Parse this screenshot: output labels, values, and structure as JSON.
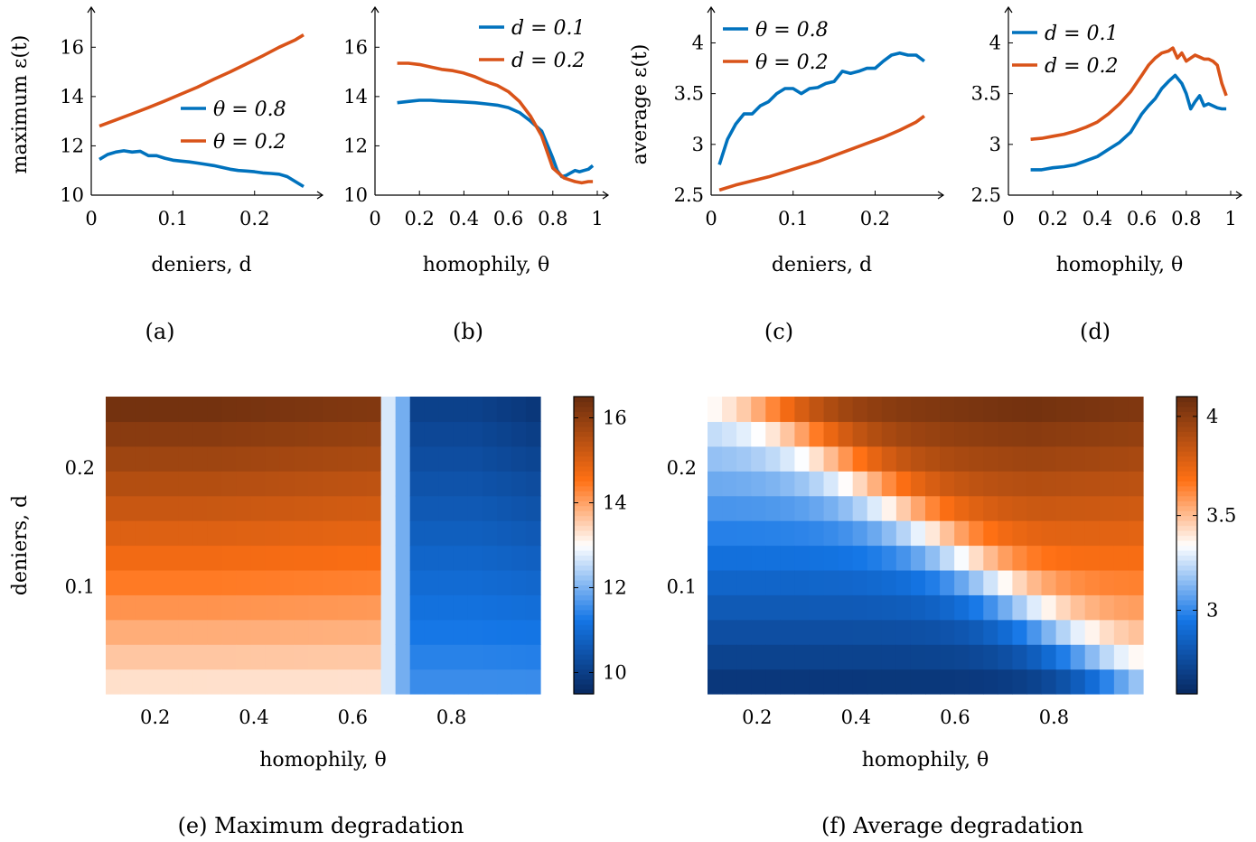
{
  "colors": {
    "blue": "#0072BD",
    "orange": "#D95319"
  },
  "panels": [
    {
      "caption": "(a)",
      "xlabel": "deniers, d",
      "ylabel": "maximum ε(t)",
      "xlim": [
        0,
        0.27
      ],
      "ylim": [
        10,
        17
      ],
      "xticks": [
        0,
        0.1,
        0.2
      ],
      "xtick_labels": [
        "0",
        "0.1",
        "0.2"
      ],
      "yticks": [
        10,
        12,
        14,
        16
      ],
      "ytick_labels": [
        "10",
        "12",
        "14",
        "16"
      ],
      "legend_position": "right",
      "series": [
        {
          "name": "θ = 0.8",
          "color": "blue",
          "x": [
            0.01,
            0.02,
            0.03,
            0.04,
            0.05,
            0.06,
            0.07,
            0.08,
            0.09,
            0.1,
            0.11,
            0.12,
            0.13,
            0.14,
            0.15,
            0.16,
            0.17,
            0.18,
            0.19,
            0.2,
            0.21,
            0.22,
            0.23,
            0.24,
            0.25,
            0.26
          ],
          "y": [
            11.45,
            11.65,
            11.75,
            11.8,
            11.75,
            11.78,
            11.6,
            11.6,
            11.5,
            11.42,
            11.38,
            11.35,
            11.3,
            11.25,
            11.2,
            11.13,
            11.05,
            11.0,
            10.98,
            10.95,
            10.9,
            10.88,
            10.85,
            10.75,
            10.55,
            10.35
          ]
        },
        {
          "name": "θ = 0.2",
          "color": "orange",
          "x": [
            0.01,
            0.03,
            0.05,
            0.07,
            0.09,
            0.11,
            0.13,
            0.15,
            0.17,
            0.19,
            0.21,
            0.23,
            0.25,
            0.26
          ],
          "y": [
            12.8,
            13.05,
            13.3,
            13.55,
            13.82,
            14.1,
            14.38,
            14.7,
            15.0,
            15.32,
            15.65,
            16.0,
            16.3,
            16.5
          ]
        }
      ]
    },
    {
      "caption": "(b)",
      "xlabel": "homophily, θ",
      "ylabel": "",
      "xlim": [
        0,
        1
      ],
      "ylim": [
        10,
        17
      ],
      "xticks": [
        0,
        0.2,
        0.4,
        0.6,
        0.8,
        1
      ],
      "xtick_labels": [
        "0",
        "0.2",
        "0.4",
        "0.6",
        "0.8",
        "1"
      ],
      "yticks": [
        10,
        12,
        14,
        16
      ],
      "ytick_labels": [
        "10",
        "12",
        "14",
        "16"
      ],
      "legend_position": "top-right",
      "series": [
        {
          "name": "d = 0.1",
          "color": "blue",
          "x": [
            0.1,
            0.15,
            0.2,
            0.25,
            0.3,
            0.35,
            0.4,
            0.45,
            0.5,
            0.55,
            0.6,
            0.65,
            0.7,
            0.75,
            0.8,
            0.82,
            0.84,
            0.86,
            0.88,
            0.9,
            0.92,
            0.94,
            0.96,
            0.98
          ],
          "y": [
            13.75,
            13.8,
            13.85,
            13.85,
            13.82,
            13.8,
            13.78,
            13.75,
            13.7,
            13.65,
            13.55,
            13.35,
            13.0,
            12.6,
            11.5,
            11.0,
            10.75,
            10.8,
            10.9,
            11.0,
            10.95,
            11.0,
            11.05,
            11.2
          ]
        },
        {
          "name": "d = 0.2",
          "color": "orange",
          "x": [
            0.1,
            0.15,
            0.2,
            0.25,
            0.3,
            0.35,
            0.4,
            0.45,
            0.5,
            0.55,
            0.6,
            0.65,
            0.7,
            0.75,
            0.8,
            0.85,
            0.9,
            0.93,
            0.96,
            0.98
          ],
          "y": [
            15.35,
            15.35,
            15.3,
            15.2,
            15.1,
            15.05,
            14.95,
            14.8,
            14.6,
            14.45,
            14.2,
            13.8,
            13.2,
            12.4,
            11.1,
            10.7,
            10.55,
            10.5,
            10.55,
            10.55
          ]
        }
      ]
    },
    {
      "caption": "(c)",
      "xlabel": "deniers, d",
      "ylabel": "average ε(t)",
      "xlim": [
        0,
        0.27
      ],
      "ylim": [
        2.5,
        4.2
      ],
      "xticks": [
        0,
        0.1,
        0.2
      ],
      "xtick_labels": [
        "0",
        "0.1",
        "0.2"
      ],
      "yticks": [
        2.5,
        3,
        3.5,
        4
      ],
      "ytick_labels": [
        "2.5",
        "3",
        "3.5",
        "4"
      ],
      "legend_position": "top-left",
      "series": [
        {
          "name": "θ = 0.8",
          "color": "blue",
          "x": [
            0.01,
            0.02,
            0.03,
            0.04,
            0.05,
            0.06,
            0.07,
            0.08,
            0.09,
            0.1,
            0.11,
            0.12,
            0.13,
            0.14,
            0.15,
            0.16,
            0.17,
            0.18,
            0.19,
            0.2,
            0.21,
            0.22,
            0.23,
            0.24,
            0.25,
            0.26
          ],
          "y": [
            2.8,
            3.05,
            3.2,
            3.3,
            3.3,
            3.38,
            3.42,
            3.5,
            3.55,
            3.55,
            3.5,
            3.55,
            3.56,
            3.6,
            3.62,
            3.72,
            3.7,
            3.72,
            3.75,
            3.75,
            3.82,
            3.88,
            3.9,
            3.88,
            3.88,
            3.82
          ]
        },
        {
          "name": "θ = 0.2",
          "color": "orange",
          "x": [
            0.01,
            0.03,
            0.05,
            0.07,
            0.09,
            0.11,
            0.13,
            0.15,
            0.17,
            0.19,
            0.21,
            0.23,
            0.25,
            0.26
          ],
          "y": [
            2.55,
            2.6,
            2.64,
            2.68,
            2.73,
            2.78,
            2.83,
            2.89,
            2.95,
            3.01,
            3.07,
            3.14,
            3.22,
            3.28
          ]
        }
      ]
    },
    {
      "caption": "(d)",
      "xlabel": "homophily, θ",
      "ylabel": "",
      "xlim": [
        0,
        1
      ],
      "ylim": [
        2.5,
        4.2
      ],
      "xticks": [
        0,
        0.2,
        0.4,
        0.6,
        0.8,
        1
      ],
      "xtick_labels": [
        "0",
        "0.2",
        "0.4",
        "0.6",
        "0.8",
        "1"
      ],
      "yticks": [
        2.5,
        3,
        3.5,
        4
      ],
      "ytick_labels": [
        "2.5",
        "3",
        "3.5",
        "4"
      ],
      "legend_position": "top-left",
      "series": [
        {
          "name": "d = 0.1",
          "color": "blue",
          "x": [
            0.1,
            0.15,
            0.2,
            0.25,
            0.3,
            0.35,
            0.4,
            0.45,
            0.5,
            0.55,
            0.6,
            0.63,
            0.66,
            0.69,
            0.72,
            0.75,
            0.78,
            0.8,
            0.82,
            0.84,
            0.86,
            0.88,
            0.9,
            0.92,
            0.94,
            0.96,
            0.98
          ],
          "y": [
            2.75,
            2.75,
            2.77,
            2.78,
            2.8,
            2.84,
            2.88,
            2.95,
            3.02,
            3.12,
            3.3,
            3.38,
            3.45,
            3.55,
            3.62,
            3.68,
            3.6,
            3.5,
            3.35,
            3.42,
            3.48,
            3.38,
            3.4,
            3.38,
            3.36,
            3.35,
            3.35
          ]
        },
        {
          "name": "d = 0.2",
          "color": "orange",
          "x": [
            0.1,
            0.15,
            0.2,
            0.25,
            0.3,
            0.35,
            0.4,
            0.45,
            0.5,
            0.55,
            0.6,
            0.63,
            0.66,
            0.69,
            0.72,
            0.74,
            0.76,
            0.78,
            0.8,
            0.82,
            0.84,
            0.86,
            0.88,
            0.9,
            0.92,
            0.94,
            0.96,
            0.98
          ],
          "y": [
            3.05,
            3.06,
            3.08,
            3.1,
            3.13,
            3.17,
            3.22,
            3.3,
            3.4,
            3.52,
            3.68,
            3.78,
            3.85,
            3.9,
            3.92,
            3.95,
            3.85,
            3.9,
            3.82,
            3.85,
            3.88,
            3.86,
            3.84,
            3.84,
            3.82,
            3.78,
            3.6,
            3.48
          ]
        }
      ]
    }
  ],
  "heatmaps": [
    {
      "caption": "(e) Maximum degradation",
      "xlabel": "homophily, θ",
      "ylabel": "deniers, d",
      "xlim": [
        0.1,
        0.98
      ],
      "ylim": [
        0.01,
        0.26
      ],
      "xticks": [
        0.2,
        0.4,
        0.6,
        0.8
      ],
      "xtick_labels": [
        "0.2",
        "0.4",
        "0.6",
        "0.8"
      ],
      "yticks": [
        0.1,
        0.2
      ],
      "ytick_labels": [
        "0.1",
        "0.2"
      ],
      "colorbar": {
        "min": 9.5,
        "max": 16.5,
        "center": 13.0,
        "ticks": [
          10,
          12,
          14,
          16
        ],
        "tick_labels": [
          "10",
          "12",
          "14",
          "16"
        ]
      }
    },
    {
      "caption": "(f) Average degradation",
      "xlabel": "homophily, θ",
      "ylabel": "",
      "xlim": [
        0.1,
        0.98
      ],
      "ylim": [
        0.01,
        0.26
      ],
      "xticks": [
        0.2,
        0.4,
        0.6,
        0.8
      ],
      "xtick_labels": [
        "0.2",
        "0.4",
        "0.6",
        "0.8"
      ],
      "yticks": [
        0.1,
        0.2
      ],
      "ytick_labels": [
        "0.1",
        "0.2"
      ],
      "colorbar": {
        "min": 2.55,
        "max": 4.1,
        "center": 3.35,
        "ticks": [
          3,
          3.5,
          4
        ],
        "tick_labels": [
          "3",
          "3.5",
          "4"
        ]
      }
    }
  ],
  "chart_data": [
    {
      "type": "line",
      "title": "(a)",
      "xlabel": "deniers, d",
      "ylabel": "maximum ε(t)",
      "ref": "panels.0"
    },
    {
      "type": "line",
      "title": "(b)",
      "xlabel": "homophily, θ",
      "ref": "panels.1"
    },
    {
      "type": "line",
      "title": "(c)",
      "xlabel": "deniers, d",
      "ylabel": "average ε(t)",
      "ref": "panels.2"
    },
    {
      "type": "line",
      "title": "(d)",
      "xlabel": "homophily, θ",
      "ref": "panels.3"
    },
    {
      "type": "heatmap",
      "title": "(e) Maximum degradation",
      "xlabel": "homophily, θ",
      "ylabel": "deniers, d",
      "description_values": "values range approx 10 (blue, high homophily) to 16.5 (orange, low homophily, high d)"
    },
    {
      "type": "heatmap",
      "title": "(f) Average degradation",
      "xlabel": "homophily, θ",
      "description_values": "values range approx 2.6 (blue) to 4.1 (orange, high homophily, high d)"
    }
  ]
}
